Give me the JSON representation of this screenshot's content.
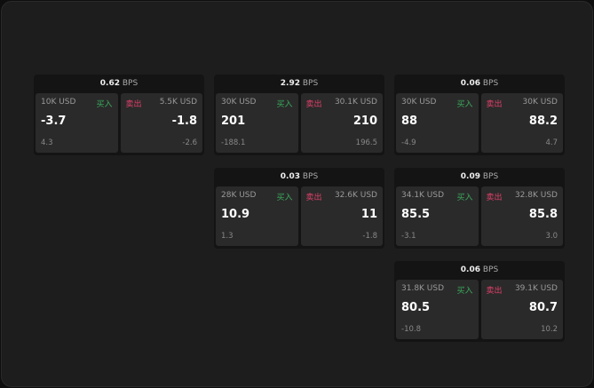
{
  "bps_unit": "BPS",
  "buy_label": "买入",
  "sell_label": "卖出",
  "colors": {
    "buy": "#3aaa5c",
    "sell": "#e0406a"
  },
  "cards": [
    {
      "bps": "0.62",
      "buy": {
        "size": "10K USD",
        "price": "-3.7",
        "change": "4.3"
      },
      "sell": {
        "size": "5.5K USD",
        "price": "-1.8",
        "change": "-2.6"
      }
    },
    {
      "bps": "2.92",
      "buy": {
        "size": "30K USD",
        "price": "201",
        "change": "-188.1"
      },
      "sell": {
        "size": "30.1K USD",
        "price": "210",
        "change": "196.5"
      }
    },
    {
      "bps": "0.06",
      "buy": {
        "size": "30K USD",
        "price": "88",
        "change": "-4.9"
      },
      "sell": {
        "size": "30K USD",
        "price": "88.2",
        "change": "4.7"
      }
    },
    {
      "bps": "0.03",
      "buy": {
        "size": "28K USD",
        "price": "10.9",
        "change": "1.3"
      },
      "sell": {
        "size": "32.6K USD",
        "price": "11",
        "change": "-1.8"
      }
    },
    {
      "bps": "0.09",
      "buy": {
        "size": "34.1K USD",
        "price": "85.5",
        "change": "-3.1"
      },
      "sell": {
        "size": "32.8K USD",
        "price": "85.8",
        "change": "3.0"
      }
    },
    {
      "bps": "0.06",
      "buy": {
        "size": "31.8K USD",
        "price": "80.5",
        "change": "-10.8"
      },
      "sell": {
        "size": "39.1K USD",
        "price": "80.7",
        "change": "10.2"
      }
    }
  ]
}
